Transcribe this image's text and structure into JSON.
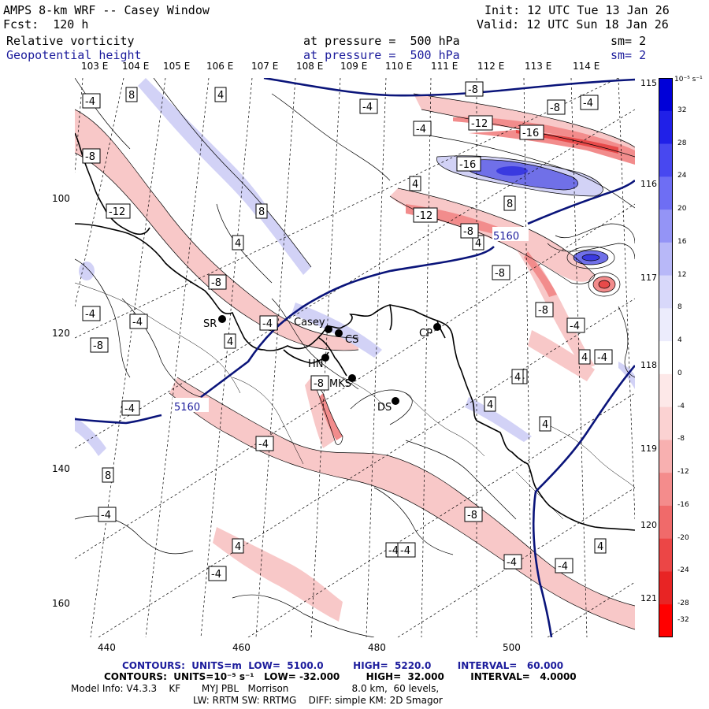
{
  "header": {
    "title": "AMPS 8-km WRF -- Casey Window",
    "forecast": "Fcst:  120 h",
    "init": "Init: 12 UTC Tue 13 Jan 26",
    "valid": "Valid: 12 UTC Sun 18 Jan 26",
    "field1": {
      "name": "Relative vorticity",
      "level": "at pressure =  500 hPa",
      "smooth": "sm= 2"
    },
    "field2": {
      "name": "Geopotential height",
      "level": "at pressure =  500 hPa",
      "smooth": "sm= 2"
    }
  },
  "lon_labels": [
    "103 E",
    "104 E",
    "105 E",
    "106 E",
    "107 E",
    "108 E",
    "109 E",
    "110 E",
    "111 E",
    "112 E",
    "113 E",
    "114 E"
  ],
  "lat_labels_right": [
    "115 E",
    "116 E",
    "117 E",
    "118 E",
    "119 E",
    "120 E",
    "121 E"
  ],
  "x_axis": [
    "440",
    "460",
    "480",
    "500"
  ],
  "y_axis": [
    "100",
    "120",
    "140",
    "160"
  ],
  "stations": [
    {
      "name": "SR"
    },
    {
      "name": "Casey"
    },
    {
      "name": "CS"
    },
    {
      "name": "HN"
    },
    {
      "name": "MKS"
    },
    {
      "name": "DS"
    },
    {
      "name": "CP"
    }
  ],
  "contour_labels": {
    "height": [
      "5160",
      "5160"
    ],
    "vort": [
      "-4",
      "8",
      "4",
      "-4",
      "-8",
      "-12",
      "-16",
      "-8",
      "-4",
      "-8",
      "-12",
      "4",
      "-4",
      "4",
      "8",
      "-16",
      "4",
      "-12",
      "-8",
      "8",
      "-8",
      "4",
      "-4",
      "-8",
      "-4",
      "-4",
      "-8",
      "-4",
      "4",
      "-4",
      "-8",
      "4",
      "4",
      "-4",
      "8",
      "-4",
      "-8",
      "4",
      "4",
      "-4",
      "-4",
      "4",
      "-4",
      "-4",
      "-8",
      "-4",
      "4",
      "-4"
    ]
  },
  "colorbar": {
    "unit": "10⁻⁵ s⁻¹",
    "ticks": [
      "32",
      "28",
      "24",
      "20",
      "16",
      "12",
      "8",
      "4",
      "0",
      "-4",
      "-8",
      "-12",
      "-16",
      "-20",
      "-24",
      "-28",
      "-32"
    ],
    "colors": [
      "#0000d8",
      "#2020e8",
      "#4848f0",
      "#6e6ef4",
      "#9494f6",
      "#b8b8f8",
      "#d8d8fa",
      "#ececfc",
      "#ffffff",
      "#fde8e8",
      "#fbd2d2",
      "#f8b0b0",
      "#f48c8c",
      "#f06a6a",
      "#ec4646",
      "#e82424",
      "#ff0000"
    ]
  },
  "footer": {
    "line1": "CONTOURS:  UNITS=m  LOW=  5100.0         HIGH=  5220.0        INTERVAL=   60.000",
    "line2": "CONTOURS:  UNITS=10⁻⁵ s⁻¹   LOW= -32.000        HIGH=  32.000        INTERVAL=   4.0000",
    "line3": "Model Info: V4.3.3    KF       MYJ PBL   Morrison                     8.0 km,  60 levels,",
    "line4": "LW: RRTM SW: RRTMG    DIFF: simple KM: 2D Smagor"
  },
  "colors": {
    "height_contour": "#0a147a",
    "coast": "#000000",
    "neg_vort": "#f5b5b5",
    "pos_vort": "#b0b0f0"
  }
}
